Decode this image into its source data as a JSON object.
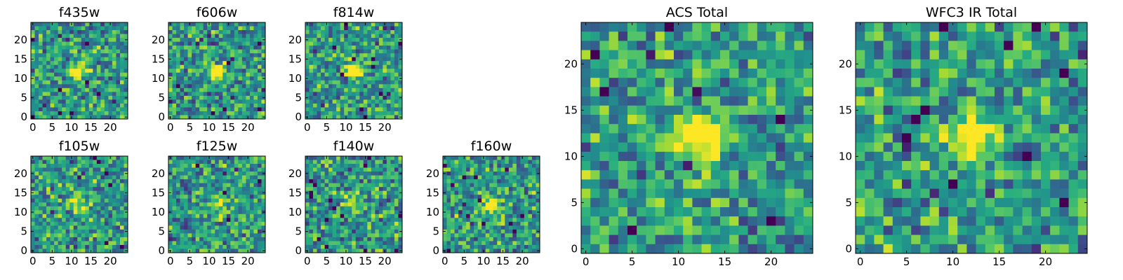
{
  "chart_data": [
    {
      "type": "heatmap",
      "title": "f435w",
      "colormap": "viridis",
      "grid_size": 25,
      "blob_center": [
        12,
        12
      ],
      "blob_strength": 0.55,
      "seed": 11,
      "xticks": [
        "0",
        "5",
        "10",
        "15",
        "20"
      ],
      "yticks": [
        "0",
        "5",
        "10",
        "15",
        "20"
      ],
      "xlim": [
        0,
        24
      ],
      "ylim": [
        0,
        24
      ]
    },
    {
      "type": "heatmap",
      "title": "f606w",
      "colormap": "viridis",
      "grid_size": 25,
      "blob_center": [
        12,
        12
      ],
      "blob_strength": 0.7,
      "seed": 23,
      "xticks": [
        "0",
        "5",
        "10",
        "15",
        "20"
      ],
      "yticks": [
        "0",
        "5",
        "10",
        "15",
        "20"
      ],
      "xlim": [
        0,
        24
      ],
      "ylim": [
        0,
        24
      ]
    },
    {
      "type": "heatmap",
      "title": "f814w",
      "colormap": "viridis",
      "grid_size": 25,
      "blob_center": [
        12,
        12
      ],
      "blob_strength": 0.7,
      "seed": 37,
      "xticks": [
        "0",
        "5",
        "10",
        "15",
        "20"
      ],
      "yticks": [
        "0",
        "5",
        "10",
        "15",
        "20"
      ],
      "xlim": [
        0,
        24
      ],
      "ylim": [
        0,
        24
      ]
    },
    {
      "type": "heatmap",
      "title": "f105w",
      "colormap": "viridis",
      "grid_size": 25,
      "blob_center": [
        12,
        12
      ],
      "blob_strength": 0.45,
      "seed": 41,
      "xticks": [
        "0",
        "5",
        "10",
        "15",
        "20"
      ],
      "yticks": [
        "0",
        "5",
        "10",
        "15",
        "20"
      ],
      "xlim": [
        0,
        24
      ],
      "ylim": [
        0,
        24
      ]
    },
    {
      "type": "heatmap",
      "title": "f125w",
      "colormap": "viridis",
      "grid_size": 25,
      "blob_center": [
        13,
        12
      ],
      "blob_strength": 0.4,
      "seed": 53,
      "xticks": [
        "0",
        "5",
        "10",
        "15",
        "20"
      ],
      "yticks": [
        "0",
        "5",
        "10",
        "15",
        "20"
      ],
      "xlim": [
        0,
        24
      ],
      "ylim": [
        0,
        24
      ]
    },
    {
      "type": "heatmap",
      "title": "f140w",
      "colormap": "viridis",
      "grid_size": 25,
      "blob_center": [
        12,
        12
      ],
      "blob_strength": 0.45,
      "seed": 67,
      "xticks": [
        "0",
        "5",
        "10",
        "15",
        "20"
      ],
      "yticks": [
        "0",
        "5",
        "10",
        "15",
        "20"
      ],
      "xlim": [
        0,
        24
      ],
      "ylim": [
        0,
        24
      ]
    },
    {
      "type": "heatmap",
      "title": "f160w",
      "colormap": "viridis",
      "grid_size": 25,
      "blob_center": [
        12,
        12
      ],
      "blob_strength": 0.6,
      "seed": 79,
      "xticks": [
        "0",
        "5",
        "10",
        "15",
        "20"
      ],
      "yticks": [
        "0",
        "5",
        "10",
        "15",
        "20"
      ],
      "xlim": [
        0,
        24
      ],
      "ylim": [
        0,
        24
      ]
    },
    {
      "type": "heatmap",
      "title": "ACS Total",
      "colormap": "viridis",
      "grid_size": 25,
      "blob_center": [
        12,
        12
      ],
      "blob_strength": 0.9,
      "seed": 97,
      "xticks": [
        "0",
        "5",
        "10",
        "15",
        "20"
      ],
      "yticks": [
        "0",
        "5",
        "10",
        "15",
        "20"
      ],
      "xlim": [
        0,
        24
      ],
      "ylim": [
        0,
        24
      ]
    },
    {
      "type": "heatmap",
      "title": "WFC3 IR Total",
      "colormap": "viridis",
      "grid_size": 25,
      "blob_center": [
        12,
        12
      ],
      "blob_strength": 0.85,
      "seed": 131,
      "xticks": [
        "0",
        "5",
        "10",
        "15",
        "20"
      ],
      "yticks": [
        "0",
        "5",
        "10",
        "15",
        "20"
      ],
      "xlim": [
        0,
        24
      ],
      "ylim": [
        0,
        24
      ]
    }
  ]
}
